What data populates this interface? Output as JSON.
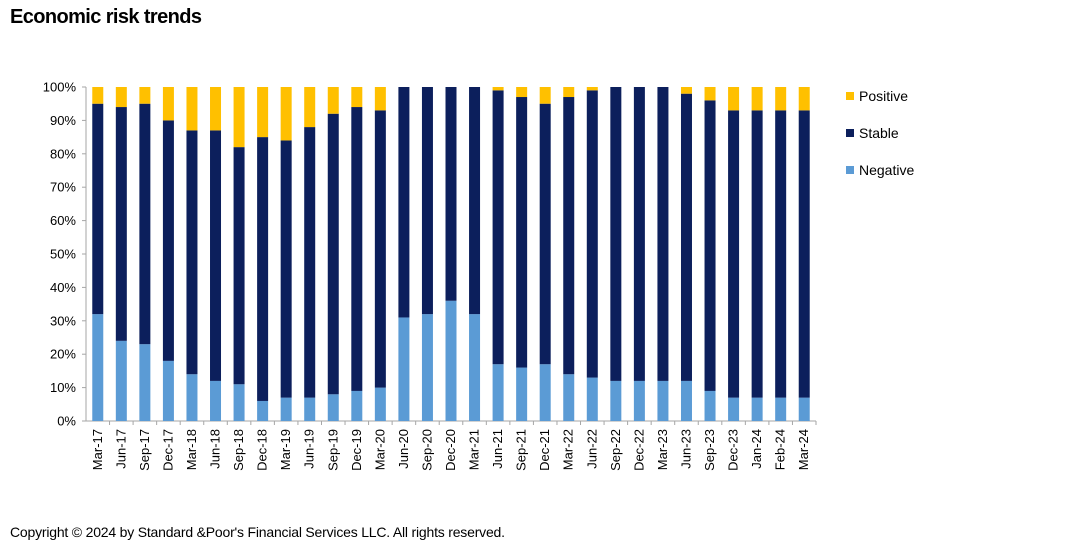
{
  "title": "Economic risk trends",
  "copyright": "Copyright © 2024 by Standard &Poor's Financial Services LLC. All rights reserved.",
  "chart_data": {
    "type": "bar",
    "stacked": true,
    "percent_stacked": true,
    "categories": [
      "Mar-17",
      "Jun-17",
      "Sep-17",
      "Dec-17",
      "Mar-18",
      "Jun-18",
      "Sep-18",
      "Dec-18",
      "Mar-19",
      "Jun-19",
      "Sep-19",
      "Dec-19",
      "Mar-20",
      "Jun-20",
      "Sep-20",
      "Dec-20",
      "Mar-21",
      "Jun-21",
      "Sep-21",
      "Dec-21",
      "Mar-22",
      "Jun-22",
      "Sep-22",
      "Dec-22",
      "Mar-23",
      "Jun-23",
      "Sep-23",
      "Dec-23",
      "Jan-24",
      "Feb-24",
      "Mar-24"
    ],
    "series": [
      {
        "name": "Negative",
        "color": "#5B9BD5",
        "values": [
          32,
          24,
          23,
          18,
          14,
          12,
          11,
          6,
          7,
          7,
          8,
          9,
          10,
          31,
          32,
          36,
          32,
          17,
          16,
          17,
          14,
          13,
          12,
          12,
          12,
          12,
          9,
          7,
          7,
          7,
          7
        ]
      },
      {
        "name": "Stable",
        "color": "#0C1F5C",
        "values": [
          63,
          70,
          72,
          72,
          73,
          75,
          71,
          79,
          77,
          81,
          84,
          85,
          83,
          69,
          68,
          64,
          68,
          82,
          81,
          78,
          83,
          86,
          88,
          88,
          88,
          86,
          87,
          86,
          86,
          86,
          86
        ]
      },
      {
        "name": "Positive",
        "color": "#FFC000",
        "values": [
          5,
          6,
          5,
          10,
          13,
          13,
          18,
          15,
          16,
          12,
          8,
          6,
          7,
          0,
          0,
          0,
          0,
          1,
          3,
          5,
          3,
          1,
          0,
          0,
          0,
          2,
          4,
          7,
          7,
          7,
          7
        ]
      }
    ],
    "legend_order": [
      "Positive",
      "Stable",
      "Negative"
    ],
    "legend_position": "right",
    "ylim": [
      0,
      100
    ],
    "yticks": [
      "0%",
      "10%",
      "20%",
      "30%",
      "40%",
      "50%",
      "60%",
      "70%",
      "80%",
      "90%",
      "100%"
    ],
    "grid": false,
    "xlabel": "",
    "ylabel": ""
  }
}
